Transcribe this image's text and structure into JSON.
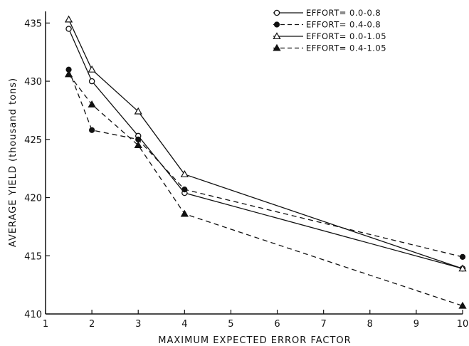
{
  "chart_data": {
    "type": "line",
    "title": "",
    "xlabel": "MAXIMUM EXPECTED ERROR FACTOR",
    "ylabel": "AVERAGE YIELD (thousand tons)",
    "xlim": [
      1,
      10
    ],
    "ylim": [
      410,
      436
    ],
    "xticks": [
      1,
      2,
      3,
      4,
      5,
      6,
      7,
      8,
      9,
      10
    ],
    "yticks": [
      410,
      415,
      420,
      425,
      430,
      435
    ],
    "grid": false,
    "legend_position": "top-right",
    "series": [
      {
        "name": "EFFORT= 0.0-0.8",
        "marker": "circle-open",
        "line": "solid",
        "x": [
          1.5,
          2,
          3,
          4,
          10
        ],
        "y": [
          434.5,
          430.0,
          425.3,
          420.4,
          413.9
        ]
      },
      {
        "name": "EFFORT= 0.4-0.8",
        "marker": "circle-filled",
        "line": "dashed",
        "x": [
          1.5,
          2,
          3,
          4,
          10
        ],
        "y": [
          431.0,
          425.8,
          425.0,
          420.7,
          414.9
        ]
      },
      {
        "name": "EFFORT= 0.0-1.05",
        "marker": "triangle-open",
        "line": "solid",
        "x": [
          1.5,
          2,
          3,
          4,
          10
        ],
        "y": [
          435.3,
          431.0,
          427.4,
          422.0,
          413.9
        ]
      },
      {
        "name": "EFFORT= 0.4-1.05",
        "marker": "triangle-filled",
        "line": "dashed",
        "x": [
          1.5,
          2,
          3,
          4,
          10
        ],
        "y": [
          430.6,
          428.0,
          424.5,
          418.6,
          410.7
        ]
      }
    ]
  }
}
